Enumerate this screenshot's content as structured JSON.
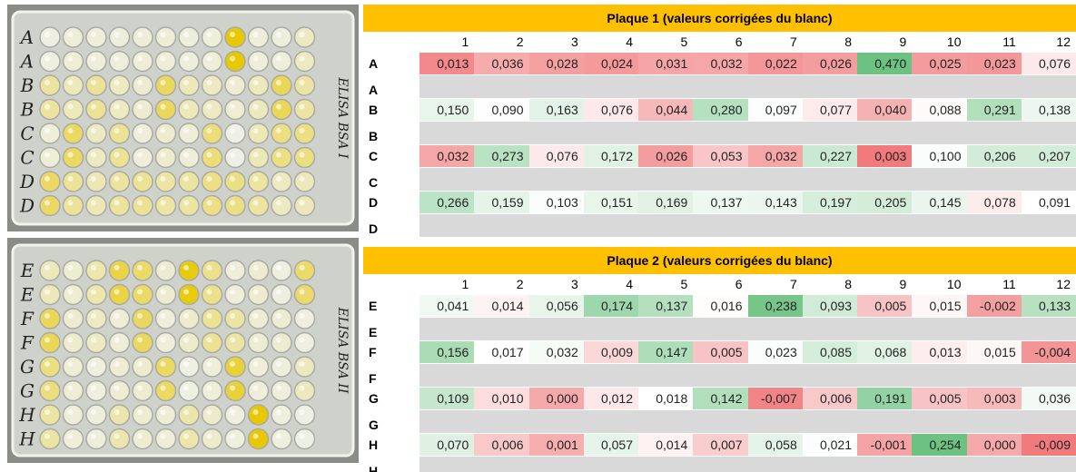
{
  "photos": [
    {
      "side_label": "ELISA BSA I"
    },
    {
      "side_label": "ELISA BSA II"
    }
  ],
  "tables": [
    {
      "title": "Plaque 1 (valeurs corrigées du blanc)",
      "columns": [
        "1",
        "2",
        "3",
        "4",
        "5",
        "6",
        "7",
        "8",
        "9",
        "10",
        "11",
        "12"
      ],
      "rows": [
        {
          "label": "A",
          "cells": [
            "0,013",
            "0,036",
            "0,028",
            "0,024",
            "0,031",
            "0,032",
            "0,022",
            "0,026",
            "0,470",
            "0,025",
            "0,023",
            "0,076"
          ]
        },
        {
          "label": "A"
        },
        {
          "label": "B",
          "cells": [
            "0,150",
            "0,090",
            "0,163",
            "0,076",
            "0,044",
            "0,280",
            "0,097",
            "0,077",
            "0,040",
            "0,088",
            "0,291",
            "0,138"
          ]
        },
        {
          "label": "B"
        },
        {
          "label": "C",
          "cells": [
            "0,032",
            "0,273",
            "0,076",
            "0,172",
            "0,026",
            "0,053",
            "0,032",
            "0,227",
            "0,003",
            "0,100",
            "0,206",
            "0,207"
          ]
        },
        {
          "label": "C"
        },
        {
          "label": "D",
          "cells": [
            "0,266",
            "0,159",
            "0,103",
            "0,151",
            "0,169",
            "0,137",
            "0,143",
            "0,197",
            "0,205",
            "0,145",
            "0,078",
            "0,091"
          ]
        },
        {
          "label": "D"
        }
      ]
    },
    {
      "title": "Plaque 2 (valeurs corrigées du blanc)",
      "columns": [
        "1",
        "2",
        "3",
        "4",
        "5",
        "6",
        "7",
        "8",
        "9",
        "10",
        "11",
        "12"
      ],
      "rows": [
        {
          "label": "E",
          "cells": [
            "0,041",
            "0,014",
            "0,056",
            "0,174",
            "0,137",
            "0,016",
            "0,238",
            "0,093",
            "0,005",
            "0,015",
            "-0,002",
            "0,133"
          ]
        },
        {
          "label": "E"
        },
        {
          "label": "F",
          "cells": [
            "0,156",
            "0,017",
            "0,032",
            "0,009",
            "0,147",
            "0,005",
            "0,023",
            "0,085",
            "0,068",
            "0,013",
            "0,015",
            "-0,004"
          ]
        },
        {
          "label": "F"
        },
        {
          "label": "G",
          "cells": [
            "0,109",
            "0,010",
            "0,000",
            "0,012",
            "0,018",
            "0,142",
            "-0,007",
            "0,006",
            "0,191",
            "0,005",
            "0,003",
            "0,036"
          ]
        },
        {
          "label": "G"
        },
        {
          "label": "H",
          "cells": [
            "0,070",
            "0,006",
            "0,001",
            "0,057",
            "0,014",
            "0,007",
            "0,058",
            "0,021",
            "-0,001",
            "0,254",
            "0,000",
            "-0,009"
          ]
        },
        {
          "label": "H"
        }
      ]
    }
  ]
}
